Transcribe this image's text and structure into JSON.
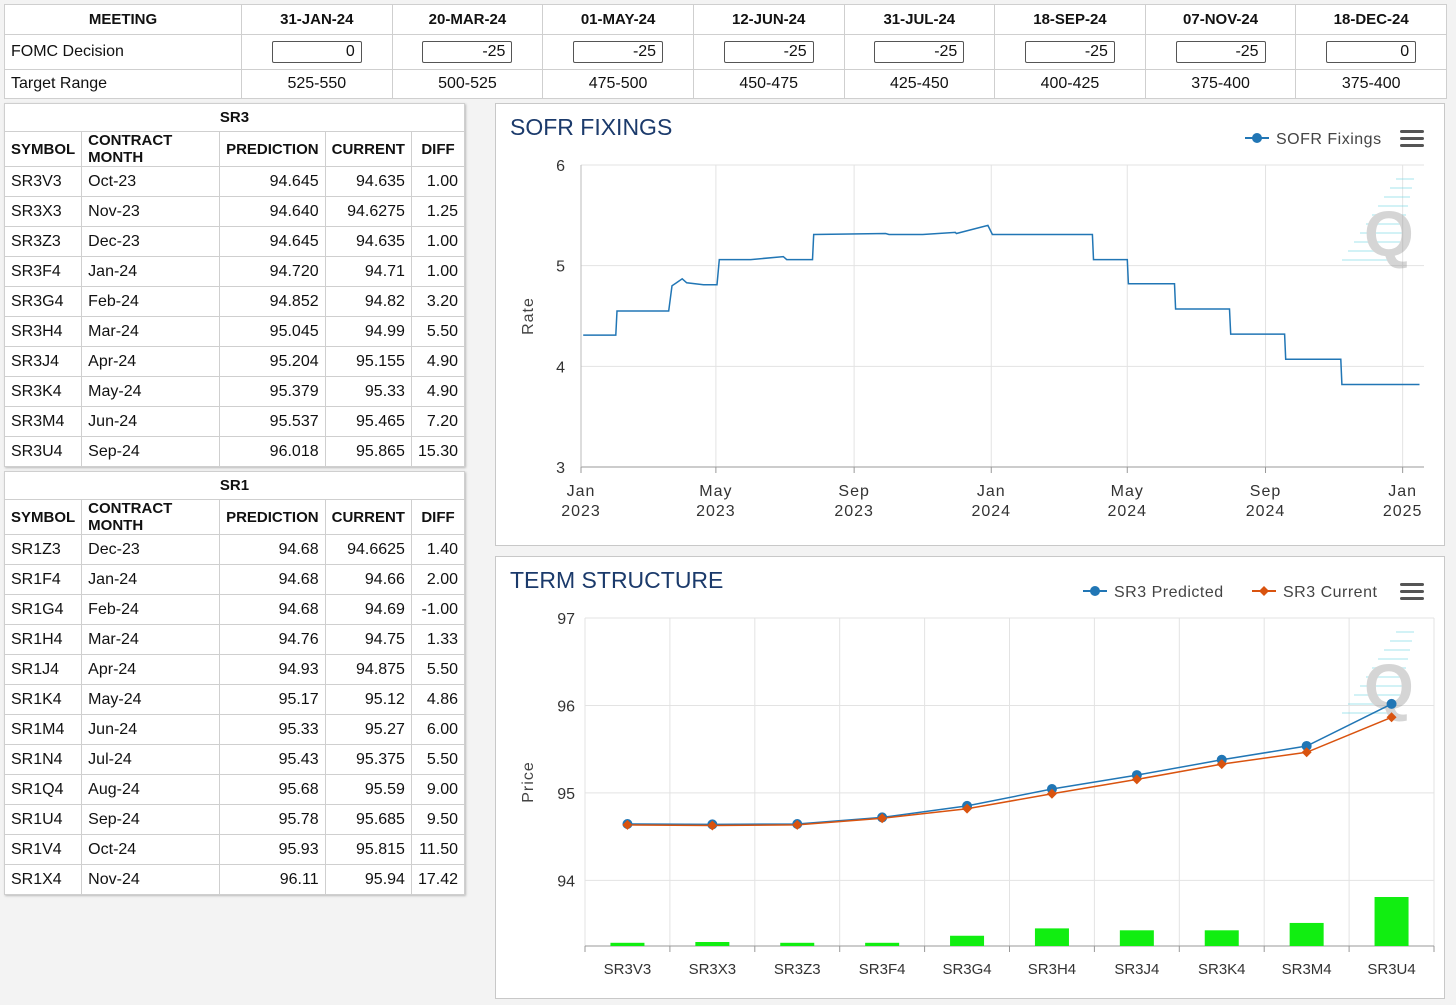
{
  "meetings": {
    "header_label": "MEETING",
    "fomc_label": "FOMC Decision",
    "range_label": "Target Range",
    "items": [
      {
        "date": "31-JAN-24",
        "decision": "0",
        "range": "525-550"
      },
      {
        "date": "20-MAR-24",
        "decision": "-25",
        "range": "500-525"
      },
      {
        "date": "01-MAY-24",
        "decision": "-25",
        "range": "475-500"
      },
      {
        "date": "12-JUN-24",
        "decision": "-25",
        "range": "450-475"
      },
      {
        "date": "31-JUL-24",
        "decision": "-25",
        "range": "425-450"
      },
      {
        "date": "18-SEP-24",
        "decision": "-25",
        "range": "400-425"
      },
      {
        "date": "07-NOV-24",
        "decision": "-25",
        "range": "375-400"
      },
      {
        "date": "18-DEC-24",
        "decision": "0",
        "range": "375-400"
      }
    ]
  },
  "sr3": {
    "title": "SR3",
    "columns": [
      "SYMBOL",
      "CONTRACT MONTH",
      "PREDICTION",
      "CURRENT",
      "DIFF"
    ],
    "rows": [
      [
        "SR3V3",
        "Oct-23",
        "94.645",
        "94.635",
        "1.00"
      ],
      [
        "SR3X3",
        "Nov-23",
        "94.640",
        "94.6275",
        "1.25"
      ],
      [
        "SR3Z3",
        "Dec-23",
        "94.645",
        "94.635",
        "1.00"
      ],
      [
        "SR3F4",
        "Jan-24",
        "94.720",
        "94.71",
        "1.00"
      ],
      [
        "SR3G4",
        "Feb-24",
        "94.852",
        "94.82",
        "3.20"
      ],
      [
        "SR3H4",
        "Mar-24",
        "95.045",
        "94.99",
        "5.50"
      ],
      [
        "SR3J4",
        "Apr-24",
        "95.204",
        "95.155",
        "4.90"
      ],
      [
        "SR3K4",
        "May-24",
        "95.379",
        "95.33",
        "4.90"
      ],
      [
        "SR3M4",
        "Jun-24",
        "95.537",
        "95.465",
        "7.20"
      ],
      [
        "SR3U4",
        "Sep-24",
        "96.018",
        "95.865",
        "15.30"
      ]
    ]
  },
  "sr1": {
    "title": "SR1",
    "columns": [
      "SYMBOL",
      "CONTRACT MONTH",
      "PREDICTION",
      "CURRENT",
      "DIFF"
    ],
    "rows": [
      [
        "SR1Z3",
        "Dec-23",
        "94.68",
        "94.6625",
        "1.40"
      ],
      [
        "SR1F4",
        "Jan-24",
        "94.68",
        "94.66",
        "2.00"
      ],
      [
        "SR1G4",
        "Feb-24",
        "94.68",
        "94.69",
        "-1.00"
      ],
      [
        "SR1H4",
        "Mar-24",
        "94.76",
        "94.75",
        "1.33"
      ],
      [
        "SR1J4",
        "Apr-24",
        "94.93",
        "94.875",
        "5.50"
      ],
      [
        "SR1K4",
        "May-24",
        "95.17",
        "95.12",
        "4.86"
      ],
      [
        "SR1M4",
        "Jun-24",
        "95.33",
        "95.27",
        "6.00"
      ],
      [
        "SR1N4",
        "Jul-24",
        "95.43",
        "95.375",
        "5.50"
      ],
      [
        "SR1Q4",
        "Aug-24",
        "95.68",
        "95.59",
        "9.00"
      ],
      [
        "SR1U4",
        "Sep-24",
        "95.78",
        "95.685",
        "9.50"
      ],
      [
        "SR1V4",
        "Oct-24",
        "95.93",
        "95.815",
        "11.50"
      ],
      [
        "SR1X4",
        "Nov-24",
        "96.11",
        "95.94",
        "17.42"
      ]
    ]
  },
  "chart_data": [
    {
      "type": "line",
      "title": "SOFR FIXINGS",
      "xlabel": "",
      "ylabel": "Rate",
      "ylim": [
        3,
        6
      ],
      "yticks": [
        3,
        4,
        5,
        6
      ],
      "xlim": [
        "2023-01-01",
        "2025-01-20"
      ],
      "xticks": [
        {
          "date": "2023-01-01",
          "label1": "Jan",
          "label2": "2023"
        },
        {
          "date": "2023-05-01",
          "label1": "May",
          "label2": "2023"
        },
        {
          "date": "2023-09-01",
          "label1": "Sep",
          "label2": "2023"
        },
        {
          "date": "2024-01-01",
          "label1": "Jan",
          "label2": "2024"
        },
        {
          "date": "2024-05-01",
          "label1": "May",
          "label2": "2024"
        },
        {
          "date": "2024-09-01",
          "label1": "Sep",
          "label2": "2024"
        },
        {
          "date": "2025-01-01",
          "label1": "Jan",
          "label2": "2025"
        }
      ],
      "legend_position": "top-right",
      "grid": true,
      "color": "#2176b5",
      "series": [
        {
          "name": "SOFR Fixings",
          "points": [
            [
              "2023-01-03",
              4.31
            ],
            [
              "2023-02-01",
              4.31
            ],
            [
              "2023-02-02",
              4.55
            ],
            [
              "2023-03-20",
              4.55
            ],
            [
              "2023-03-23",
              4.8
            ],
            [
              "2023-03-27",
              4.83
            ],
            [
              "2023-04-01",
              4.87
            ],
            [
              "2023-04-05",
              4.83
            ],
            [
              "2023-04-20",
              4.81
            ],
            [
              "2023-05-02",
              4.81
            ],
            [
              "2023-05-04",
              5.06
            ],
            [
              "2023-06-01",
              5.06
            ],
            [
              "2023-06-30",
              5.09
            ],
            [
              "2023-07-03",
              5.06
            ],
            [
              "2023-07-26",
              5.06
            ],
            [
              "2023-07-27",
              5.31
            ],
            [
              "2023-09-29",
              5.32
            ],
            [
              "2023-10-02",
              5.31
            ],
            [
              "2023-11-01",
              5.31
            ],
            [
              "2023-11-30",
              5.33
            ],
            [
              "2023-12-01",
              5.32
            ],
            [
              "2023-12-29",
              5.4
            ],
            [
              "2024-01-02",
              5.31
            ],
            [
              "2024-03-31",
              5.31
            ],
            [
              "2024-04-01",
              5.06
            ],
            [
              "2024-05-01",
              5.06
            ],
            [
              "2024-05-02",
              4.82
            ],
            [
              "2024-06-12",
              4.82
            ],
            [
              "2024-06-13",
              4.57
            ],
            [
              "2024-07-31",
              4.57
            ],
            [
              "2024-08-01",
              4.32
            ],
            [
              "2024-09-18",
              4.32
            ],
            [
              "2024-09-19",
              4.07
            ],
            [
              "2024-11-07",
              4.07
            ],
            [
              "2024-11-08",
              3.82
            ],
            [
              "2025-01-16",
              3.82
            ]
          ]
        }
      ]
    },
    {
      "type": "line",
      "title": "TERM STRUCTURE",
      "xlabel": "",
      "ylabel": "Price",
      "ylim": [
        93.25,
        97
      ],
      "yticks": [
        94,
        95,
        96,
        97
      ],
      "categories": [
        "SR3V3",
        "SR3X3",
        "SR3Z3",
        "SR3F4",
        "SR3G4",
        "SR3H4",
        "SR3J4",
        "SR3K4",
        "SR3M4",
        "SR3U4"
      ],
      "legend_position": "top-right",
      "grid": true,
      "series": [
        {
          "name": "SR3 Predicted",
          "color": "#2176b5",
          "marker": "circle",
          "values": [
            94.645,
            94.64,
            94.645,
            94.72,
            94.852,
            95.045,
            95.204,
            95.379,
            95.537,
            96.018
          ]
        },
        {
          "name": "SR3 Current",
          "color": "#d9530f",
          "marker": "diamond",
          "values": [
            94.635,
            94.6275,
            94.635,
            94.71,
            94.82,
            94.99,
            95.155,
            95.33,
            95.465,
            95.865
          ]
        }
      ],
      "bars": {
        "color": "#11ee11",
        "values": [
          1.0,
          1.25,
          1.0,
          1.0,
          3.2,
          5.5,
          4.9,
          4.9,
          7.2,
          15.3
        ]
      }
    }
  ],
  "icons": {
    "menu": "hamburger-menu-icon",
    "watermark": "q-logo-watermark"
  }
}
